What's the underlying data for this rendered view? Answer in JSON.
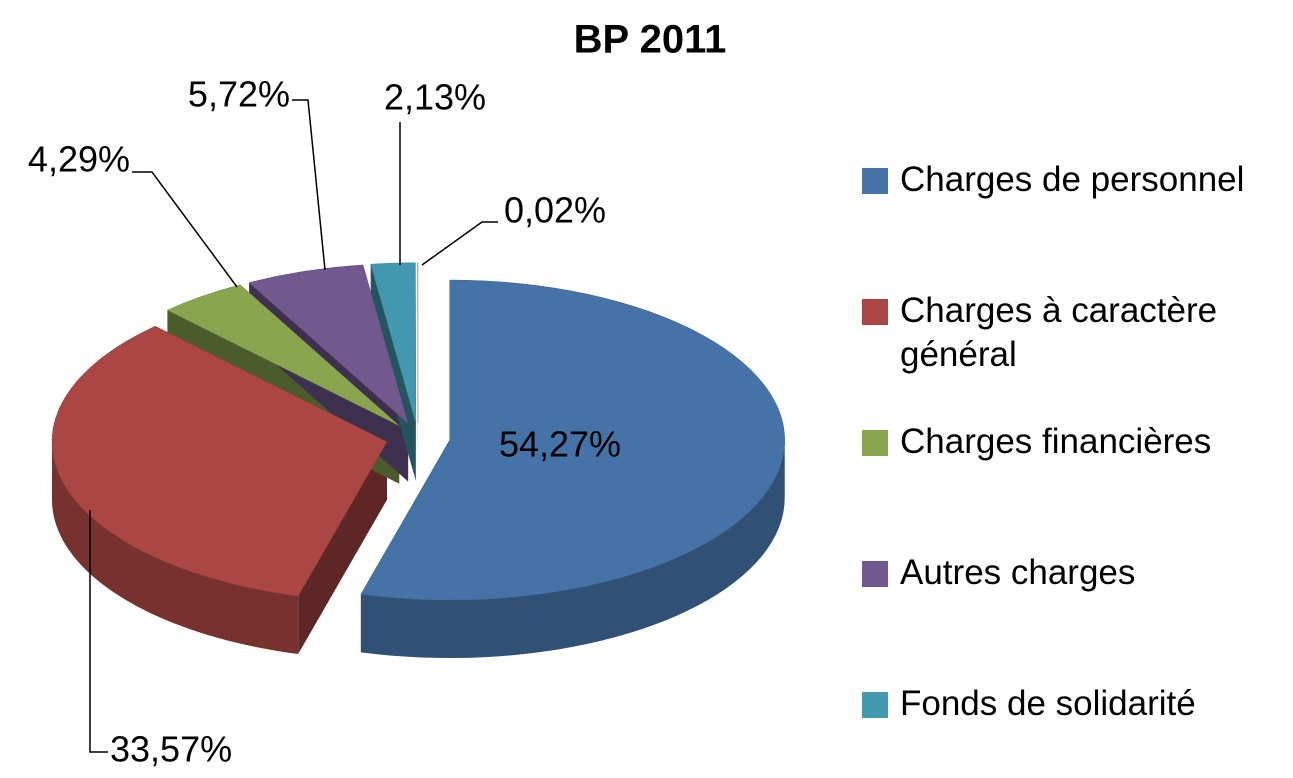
{
  "chart_data": {
    "type": "pie3d",
    "title": "BP 2011",
    "categories": [
      "Charges de personnel",
      "Charges à caractère général",
      "Charges financières",
      "Autres charges",
      "Fonds de solidarité",
      null
    ],
    "values": [
      54.27,
      33.57,
      4.29,
      5.72,
      2.13,
      0.02
    ],
    "value_labels": [
      "54,27%",
      "33,57%",
      "4,29%",
      "5,72%",
      "2,13%",
      "0,02%"
    ],
    "colors": [
      "#4572a7",
      "#aa4643",
      "#89a54e",
      "#71588f",
      "#4198af",
      "#db843d"
    ],
    "legend": "right"
  }
}
